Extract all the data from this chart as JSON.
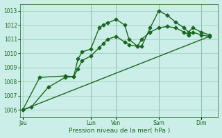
{
  "title": "",
  "xlabel": "Pression niveau de la mer( hPa )",
  "bg_color": "#cceee8",
  "grid_color": "#99ccbb",
  "line_color": "#1a6620",
  "ylim": [
    1005.5,
    1013.5
  ],
  "yticks": [
    1006,
    1007,
    1008,
    1009,
    1010,
    1011,
    1012,
    1013
  ],
  "xtick_labels": [
    "Jeu",
    "Lun",
    "Ven",
    "Sam",
    "Dim"
  ],
  "xtick_positions": [
    0,
    8,
    11,
    16,
    21
  ],
  "xlim": [
    -0.3,
    23
  ],
  "vlines": [
    8,
    11,
    16,
    21
  ],
  "series1_x": [
    0,
    1,
    3,
    5,
    6,
    6.5,
    7,
    8,
    9,
    9.5,
    10,
    11,
    12,
    12.5,
    13.5,
    14,
    15,
    16,
    17,
    18,
    19,
    19.5,
    20,
    21,
    22
  ],
  "series1_y": [
    1006.0,
    1006.2,
    1007.6,
    1008.3,
    1008.35,
    1009.6,
    1010.1,
    1010.3,
    1011.8,
    1012.0,
    1012.15,
    1012.4,
    1012.0,
    1011.0,
    1010.5,
    1010.5,
    1011.8,
    1013.0,
    1012.7,
    1012.2,
    1011.8,
    1011.5,
    1011.8,
    1011.5,
    1011.3
  ],
  "series2_x": [
    0,
    2,
    5,
    6,
    6.5,
    7,
    8,
    9,
    9.5,
    10,
    11,
    12,
    12.5,
    13.5,
    14,
    15,
    16,
    17,
    18,
    19,
    19.5,
    20,
    21,
    22
  ],
  "series2_y": [
    1006.0,
    1008.3,
    1008.4,
    1008.35,
    1008.9,
    1009.5,
    1009.8,
    1010.4,
    1010.7,
    1011.0,
    1011.2,
    1010.8,
    1010.6,
    1010.5,
    1011.0,
    1011.5,
    1011.8,
    1011.9,
    1011.8,
    1011.5,
    1011.3,
    1011.5,
    1011.3,
    1011.2
  ],
  "series3_x": [
    0,
    22
  ],
  "series3_y": [
    1006.0,
    1011.2
  ],
  "marker": "D",
  "markersize": 2.5,
  "linewidth": 1.0
}
